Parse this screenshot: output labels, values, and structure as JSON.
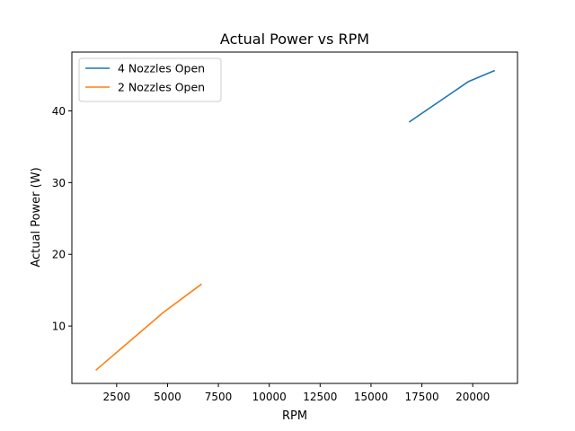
{
  "chart_data": {
    "type": "line",
    "title": "Actual Power vs RPM",
    "xlabel": "RPM",
    "ylabel": "Actual Power (W)",
    "xlim": [
      300,
      22200
    ],
    "ylim": [
      2,
      48.2
    ],
    "x_ticks": [
      2500,
      5000,
      7500,
      10000,
      12500,
      15000,
      17500,
      20000
    ],
    "y_ticks": [
      10,
      20,
      30,
      40
    ],
    "grid": false,
    "legend_position": "upper-left",
    "series": [
      {
        "name": "4 Nozzles Open",
        "color": "#1f77b4",
        "x": [
          16900,
          19800,
          21050
        ],
        "y": [
          38.5,
          44.1,
          45.6
        ]
      },
      {
        "name": "2 Nozzles Open",
        "color": "#ff7f0e",
        "x": [
          1500,
          4800,
          6650
        ],
        "y": [
          3.9,
          11.9,
          15.8
        ]
      }
    ]
  }
}
